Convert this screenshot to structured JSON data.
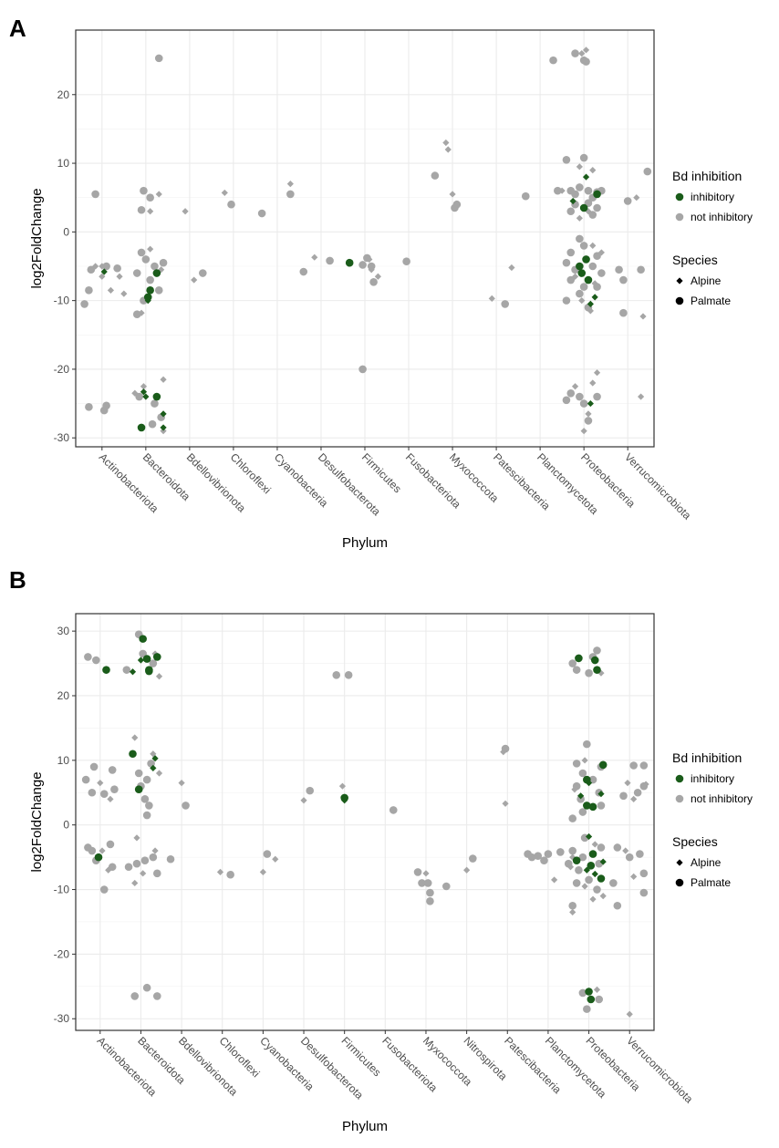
{
  "chart_data": [
    {
      "type": "scatter",
      "label": "A",
      "x_label": "Phylum",
      "y_label": "log2FoldChange",
      "xlim": [
        0.4,
        13.6
      ],
      "ylim": [
        -31.3,
        29.4
      ],
      "grid": true,
      "xticks": [
        {
          "value": 1,
          "label": "Actinobacteriota"
        },
        {
          "value": 2,
          "label": "Bacteroidota"
        },
        {
          "value": 3,
          "label": "Bdellovibrionota"
        },
        {
          "value": 4,
          "label": "Chloroflexi"
        },
        {
          "value": 5,
          "label": "Cyanobacteria"
        },
        {
          "value": 6,
          "label": "Desulfobacterota"
        },
        {
          "value": 7,
          "label": "Firmicutes"
        },
        {
          "value": 8,
          "label": "Fusobacteriota"
        },
        {
          "value": 9,
          "label": "Myxococcota"
        },
        {
          "value": 10,
          "label": "Patescibacteria"
        },
        {
          "value": 11,
          "label": "Planctomycetota"
        },
        {
          "value": 12,
          "label": "Proteobacteria"
        },
        {
          "value": 13,
          "label": "Verrucomicrobiota"
        }
      ],
      "yticks": [
        -30,
        -20,
        -10,
        0,
        10,
        20
      ],
      "color_legend": {
        "title": "Bd  inhibition",
        "items": [
          {
            "name": "inhibitory",
            "color": "#1a5c1a"
          },
          {
            "name": "not inhibitory",
            "color": "#a6a6a6"
          }
        ]
      },
      "shape_legend": {
        "title": "Species",
        "items": [
          {
            "name": "Alpine",
            "shape": "diamond"
          },
          {
            "name": "Palmate",
            "shape": "circle"
          }
        ]
      },
      "series": [
        {
          "inhibition": "not inhibitory",
          "species": "Alpine",
          "x": [
            0.85,
            1.0,
            1.2,
            1.0,
            2.3,
            2.1,
            2.1,
            2.35,
            1.5,
            1.9,
            1.95,
            2.4,
            2.4,
            1.75,
            1.4,
            2.9,
            3.1,
            3.8,
            5.3,
            5.85,
            7.1,
            7.3,
            7.15,
            8.85,
            8.9,
            9.0,
            9.9,
            10.35,
            11.5,
            11.9,
            12.2,
            12.1,
            11.9,
            12.2,
            11.8,
            12.25,
            11.95,
            12.15,
            12.3,
            12.2,
            12.0,
            12.1,
            11.95,
            12.05,
            11.8,
            12.4,
            13.2,
            13.35,
            13.3
          ],
          "values": [
            -5,
            -6.5,
            -8.5,
            -5,
            5.5,
            3,
            -2.5,
            -5.5,
            -9,
            -11.8,
            -22.5,
            -21.5,
            -29,
            -23.5,
            -6.5,
            3,
            -7,
            5.7,
            7,
            -3.7,
            -4,
            -6.5,
            -5.5,
            13,
            12,
            5.5,
            -9.7,
            -5.2,
            6,
            9.5,
            9,
            3,
            2,
            -2,
            -6.5,
            -7.5,
            -10,
            -11.5,
            -20.5,
            -22,
            -29,
            -26.5,
            26,
            26.5,
            -22.5,
            -3,
            5,
            -12.3,
            -24
          ]
        },
        {
          "inhibition": "not inhibitory",
          "species": "Palmate",
          "x": [
            0.6,
            0.85,
            0.7,
            0.75,
            1.1,
            1.35,
            0.7,
            1.1,
            1.05,
            2.3,
            1.95,
            2.1,
            1.9,
            1.9,
            2.0,
            2.2,
            1.8,
            2.1,
            2.3,
            1.95,
            1.8,
            2.4,
            1.85,
            2.2,
            2.15,
            2.35,
            3.3,
            3.95,
            4.65,
            5.3,
            5.6,
            6.2,
            6.95,
            7.15,
            7.2,
            6.95,
            7.05,
            7.95,
            8.6,
            9.1,
            9.05,
            10.2,
            10.67,
            11.3,
            11.4,
            11.6,
            12.0,
            11.7,
            11.8,
            11.9,
            12.1,
            12.2,
            12.3,
            12.4,
            11.8,
            12.1,
            12.3,
            11.7,
            12.2,
            11.9,
            12.0,
            11.7,
            12.3,
            11.6,
            11.8,
            12.2,
            12.4,
            11.7,
            12.0,
            12.3,
            11.9,
            11.6,
            12.1,
            11.7,
            11.9,
            12.0,
            12.3,
            11.6,
            12.1,
            11.8,
            12.0,
            12.05,
            13.45,
            13.0,
            12.8,
            12.9,
            12.9,
            13.3
          ],
          "values": [
            -10.5,
            5.5,
            -8.5,
            -5.5,
            -5,
            -5.3,
            -25.5,
            -25.3,
            -26,
            25.3,
            6,
            5,
            3.2,
            -3,
            -4,
            -5,
            -6,
            -7,
            -8.5,
            -10,
            -12,
            -4.5,
            -24,
            -25,
            -28,
            -27,
            -6,
            4,
            2.7,
            5.5,
            -5.8,
            -4.2,
            -4.8,
            -5,
            -7.3,
            -20,
            -3.8,
            -4.3,
            8.2,
            4,
            3.5,
            -10.5,
            5.2,
            25,
            6,
            10.5,
            10.8,
            6,
            5.5,
            6.5,
            6,
            5,
            5.8,
            6,
            4,
            4.2,
            3.5,
            3,
            2.5,
            -1,
            -2,
            -3,
            -3.5,
            -4.5,
            -5.5,
            -5,
            -6,
            -7,
            -8,
            -8,
            -9,
            -10,
            -11,
            -23.5,
            -24,
            -25,
            -24,
            -24.5,
            -27.5,
            26,
            25,
            24.8,
            8.8,
            4.5,
            -5.5,
            -7,
            -11.8,
            -5.5
          ]
        },
        {
          "inhibition": "inhibitory",
          "species": "Alpine",
          "x": [
            1.05,
            2.0,
            2.4,
            2.4,
            2.05,
            1.95,
            12.05,
            12.15,
            12.25,
            12.15,
            11.75
          ],
          "values": [
            -5.8,
            -24,
            -26.5,
            -28.5,
            -10,
            -23.3,
            8,
            -10.5,
            -9.5,
            -25,
            4.5
          ]
        },
        {
          "inhibition": "inhibitory",
          "species": "Palmate",
          "x": [
            2.1,
            2.05,
            2.25,
            2.25,
            1.9,
            6.65,
            12.0,
            12.05,
            11.9,
            11.95,
            12.1,
            12.3
          ],
          "values": [
            -8.5,
            -9.5,
            -6,
            -24,
            -28.5,
            -4.5,
            3.5,
            -4,
            -5,
            -6,
            -7,
            5.5
          ]
        }
      ]
    },
    {
      "type": "scatter",
      "label": "B",
      "x_label": "Phylum",
      "y_label": "log2FoldChange",
      "xlim": [
        0.4,
        14.6
      ],
      "ylim": [
        -31.8,
        32.7
      ],
      "grid": true,
      "xticks": [
        {
          "value": 1,
          "label": "Actinobacteriota"
        },
        {
          "value": 2,
          "label": "Bacteroidota"
        },
        {
          "value": 3,
          "label": "Bdellovibrionota"
        },
        {
          "value": 4,
          "label": "Chloroflexi"
        },
        {
          "value": 5,
          "label": "Cyanobacteria"
        },
        {
          "value": 6,
          "label": "Desulfobacterota"
        },
        {
          "value": 7,
          "label": "Firmicutes"
        },
        {
          "value": 8,
          "label": "Fusobacteriota"
        },
        {
          "value": 9,
          "label": "Myxococcota"
        },
        {
          "value": 10,
          "label": "Nitrospirota"
        },
        {
          "value": 11,
          "label": "Patescibacteria"
        },
        {
          "value": 12,
          "label": "Planctomycetota"
        },
        {
          "value": 13,
          "label": "Proteobacteria"
        },
        {
          "value": 14,
          "label": "Verrucomicrobiota"
        }
      ],
      "yticks": [
        -30,
        -20,
        -10,
        0,
        10,
        20,
        30
      ],
      "color_legend": {
        "title": "Bd  inhibition",
        "items": [
          {
            "name": "inhibitory",
            "color": "#1a5c1a"
          },
          {
            "name": "not inhibitory",
            "color": "#a6a6a6"
          }
        ]
      },
      "shape_legend": {
        "title": "Species",
        "items": [
          {
            "name": "Alpine",
            "shape": "diamond"
          },
          {
            "name": "Palmate",
            "shape": "circle"
          }
        ]
      },
      "series": [
        {
          "inhibition": "not inhibitory",
          "species": "Alpine",
          "x": [
            1.0,
            1.05,
            1.2,
            1.25,
            1.85,
            2.3,
            2.45,
            1.9,
            1.85,
            2.05,
            2.35,
            2.45,
            2.35,
            3.0,
            3.95,
            5.0,
            5.3,
            6.0,
            6.95,
            9.0,
            10.0,
            10.9,
            10.95,
            12.15,
            12.6,
            13.3,
            12.9,
            12.65,
            13.15,
            12.55,
            13.1,
            12.6,
            13.35,
            13.2,
            12.9,
            13.95,
            14.1,
            13.9,
            14.1,
            14.0,
            14.4
          ],
          "values": [
            6.5,
            -4,
            -7,
            4,
            13.5,
            11,
            8,
            -2,
            -9,
            -7.5,
            -4,
            23,
            26.5,
            6.5,
            -7.3,
            -7.3,
            -5.3,
            3.8,
            6,
            -7.5,
            -7,
            11.3,
            3.3,
            -8.5,
            -5,
            23.5,
            10,
            5.5,
            -3,
            -6.5,
            -11.5,
            -13.5,
            -11,
            -25.5,
            -9.5,
            6.5,
            4,
            -4,
            -8,
            -29.3,
            6.3
          ]
        },
        {
          "inhibition": "not inhibitory",
          "species": "Palmate",
          "x": [
            0.7,
            0.9,
            0.65,
            0.8,
            1.1,
            0.85,
            1.3,
            1.35,
            0.7,
            0.8,
            0.9,
            1.1,
            1.3,
            1.25,
            1.95,
            2.05,
            1.65,
            2.3,
            2.15,
            2.0,
            2.1,
            2.15,
            1.95,
            2.25,
            2.1,
            1.9,
            2.3,
            2.4,
            1.7,
            2.15,
            1.85,
            2.4,
            2.2,
            2.73,
            3.1,
            4.2,
            5.1,
            6.15,
            6.8,
            7.1,
            8.2,
            8.8,
            8.9,
            9.05,
            9.1,
            9.1,
            9.5,
            10.15,
            10.95,
            11.5,
            11.6,
            11.75,
            12.0,
            11.9,
            12.3,
            12.5,
            13.2,
            12.6,
            12.7,
            13.1,
            13.0,
            12.95,
            12.7,
            13.3,
            12.85,
            13.1,
            12.7,
            13.25,
            12.8,
            13.3,
            12.85,
            12.9,
            13.3,
            12.6,
            12.85,
            13.25,
            12.75,
            13.0,
            13.2,
            12.6,
            12.7,
            12.85,
            12.95,
            13.25,
            12.6,
            14.1,
            14.35,
            14.35,
            13.85,
            14.2,
            13.7,
            14.0,
            14.25,
            14.35,
            14.35,
            13.7,
            13.6
          ],
          "values": [
            26,
            25.5,
            7,
            5,
            4.8,
            9,
            8.5,
            5.5,
            -3.5,
            -4,
            -5.5,
            -10,
            -6.5,
            -3,
            29.5,
            26.5,
            24,
            25,
            7,
            6,
            4,
            1.5,
            8,
            9.5,
            -5.5,
            -6,
            -5,
            -7.5,
            -6.5,
            -25.2,
            -26.5,
            -26.5,
            3,
            -5.3,
            3,
            -7.7,
            -4.5,
            5.3,
            23.2,
            23.2,
            2.3,
            -7.3,
            -9,
            -9,
            -10.5,
            -11.8,
            -9.5,
            -5.2,
            11.8,
            -4.5,
            -5,
            -4.8,
            -4.5,
            -5.5,
            -4.2,
            -6,
            27,
            25,
            24,
            26,
            23.5,
            12.5,
            9.5,
            9,
            8,
            7,
            6,
            5,
            4,
            3,
            2,
            -2,
            -3.5,
            -4,
            -5,
            -6,
            -7,
            -8.5,
            -10,
            -12.5,
            -9,
            -26,
            -28.5,
            -27,
            1,
            9.2,
            9.2,
            6,
            4.5,
            5,
            -3.5,
            -5,
            -4.5,
            -7.5,
            -10.5,
            -12.5,
            -9
          ]
        },
        {
          "inhibition": "inhibitory",
          "species": "Alpine",
          "x": [
            1.8,
            2.0,
            2.35,
            2.3,
            7.0,
            12.8,
            13.0,
            12.95,
            13.15,
            13.35,
            13.3,
            13.0
          ],
          "values": [
            23.7,
            25.5,
            10.3,
            8.8,
            3.8,
            4.5,
            -1.8,
            -7,
            -7.6,
            -5.7,
            4.8,
            6.5
          ]
        },
        {
          "inhibition": "inhibitory",
          "species": "Palmate",
          "x": [
            0.96,
            1.15,
            2.05,
            2.4,
            2.2,
            2.15,
            1.8,
            1.95,
            2.2,
            7.0,
            12.75,
            13.15,
            13.2,
            13.35,
            12.95,
            12.95,
            13.1,
            13.1,
            13.05,
            13.3,
            12.7,
            13.0,
            13.05
          ],
          "values": [
            -5,
            24,
            28.8,
            26,
            24,
            25.7,
            11,
            5.5,
            23.8,
            4.2,
            25.8,
            25.5,
            24,
            9.3,
            7,
            3,
            2.8,
            -4.5,
            -6.3,
            -8.3,
            -5.5,
            -25.8,
            -27
          ]
        }
      ]
    }
  ]
}
